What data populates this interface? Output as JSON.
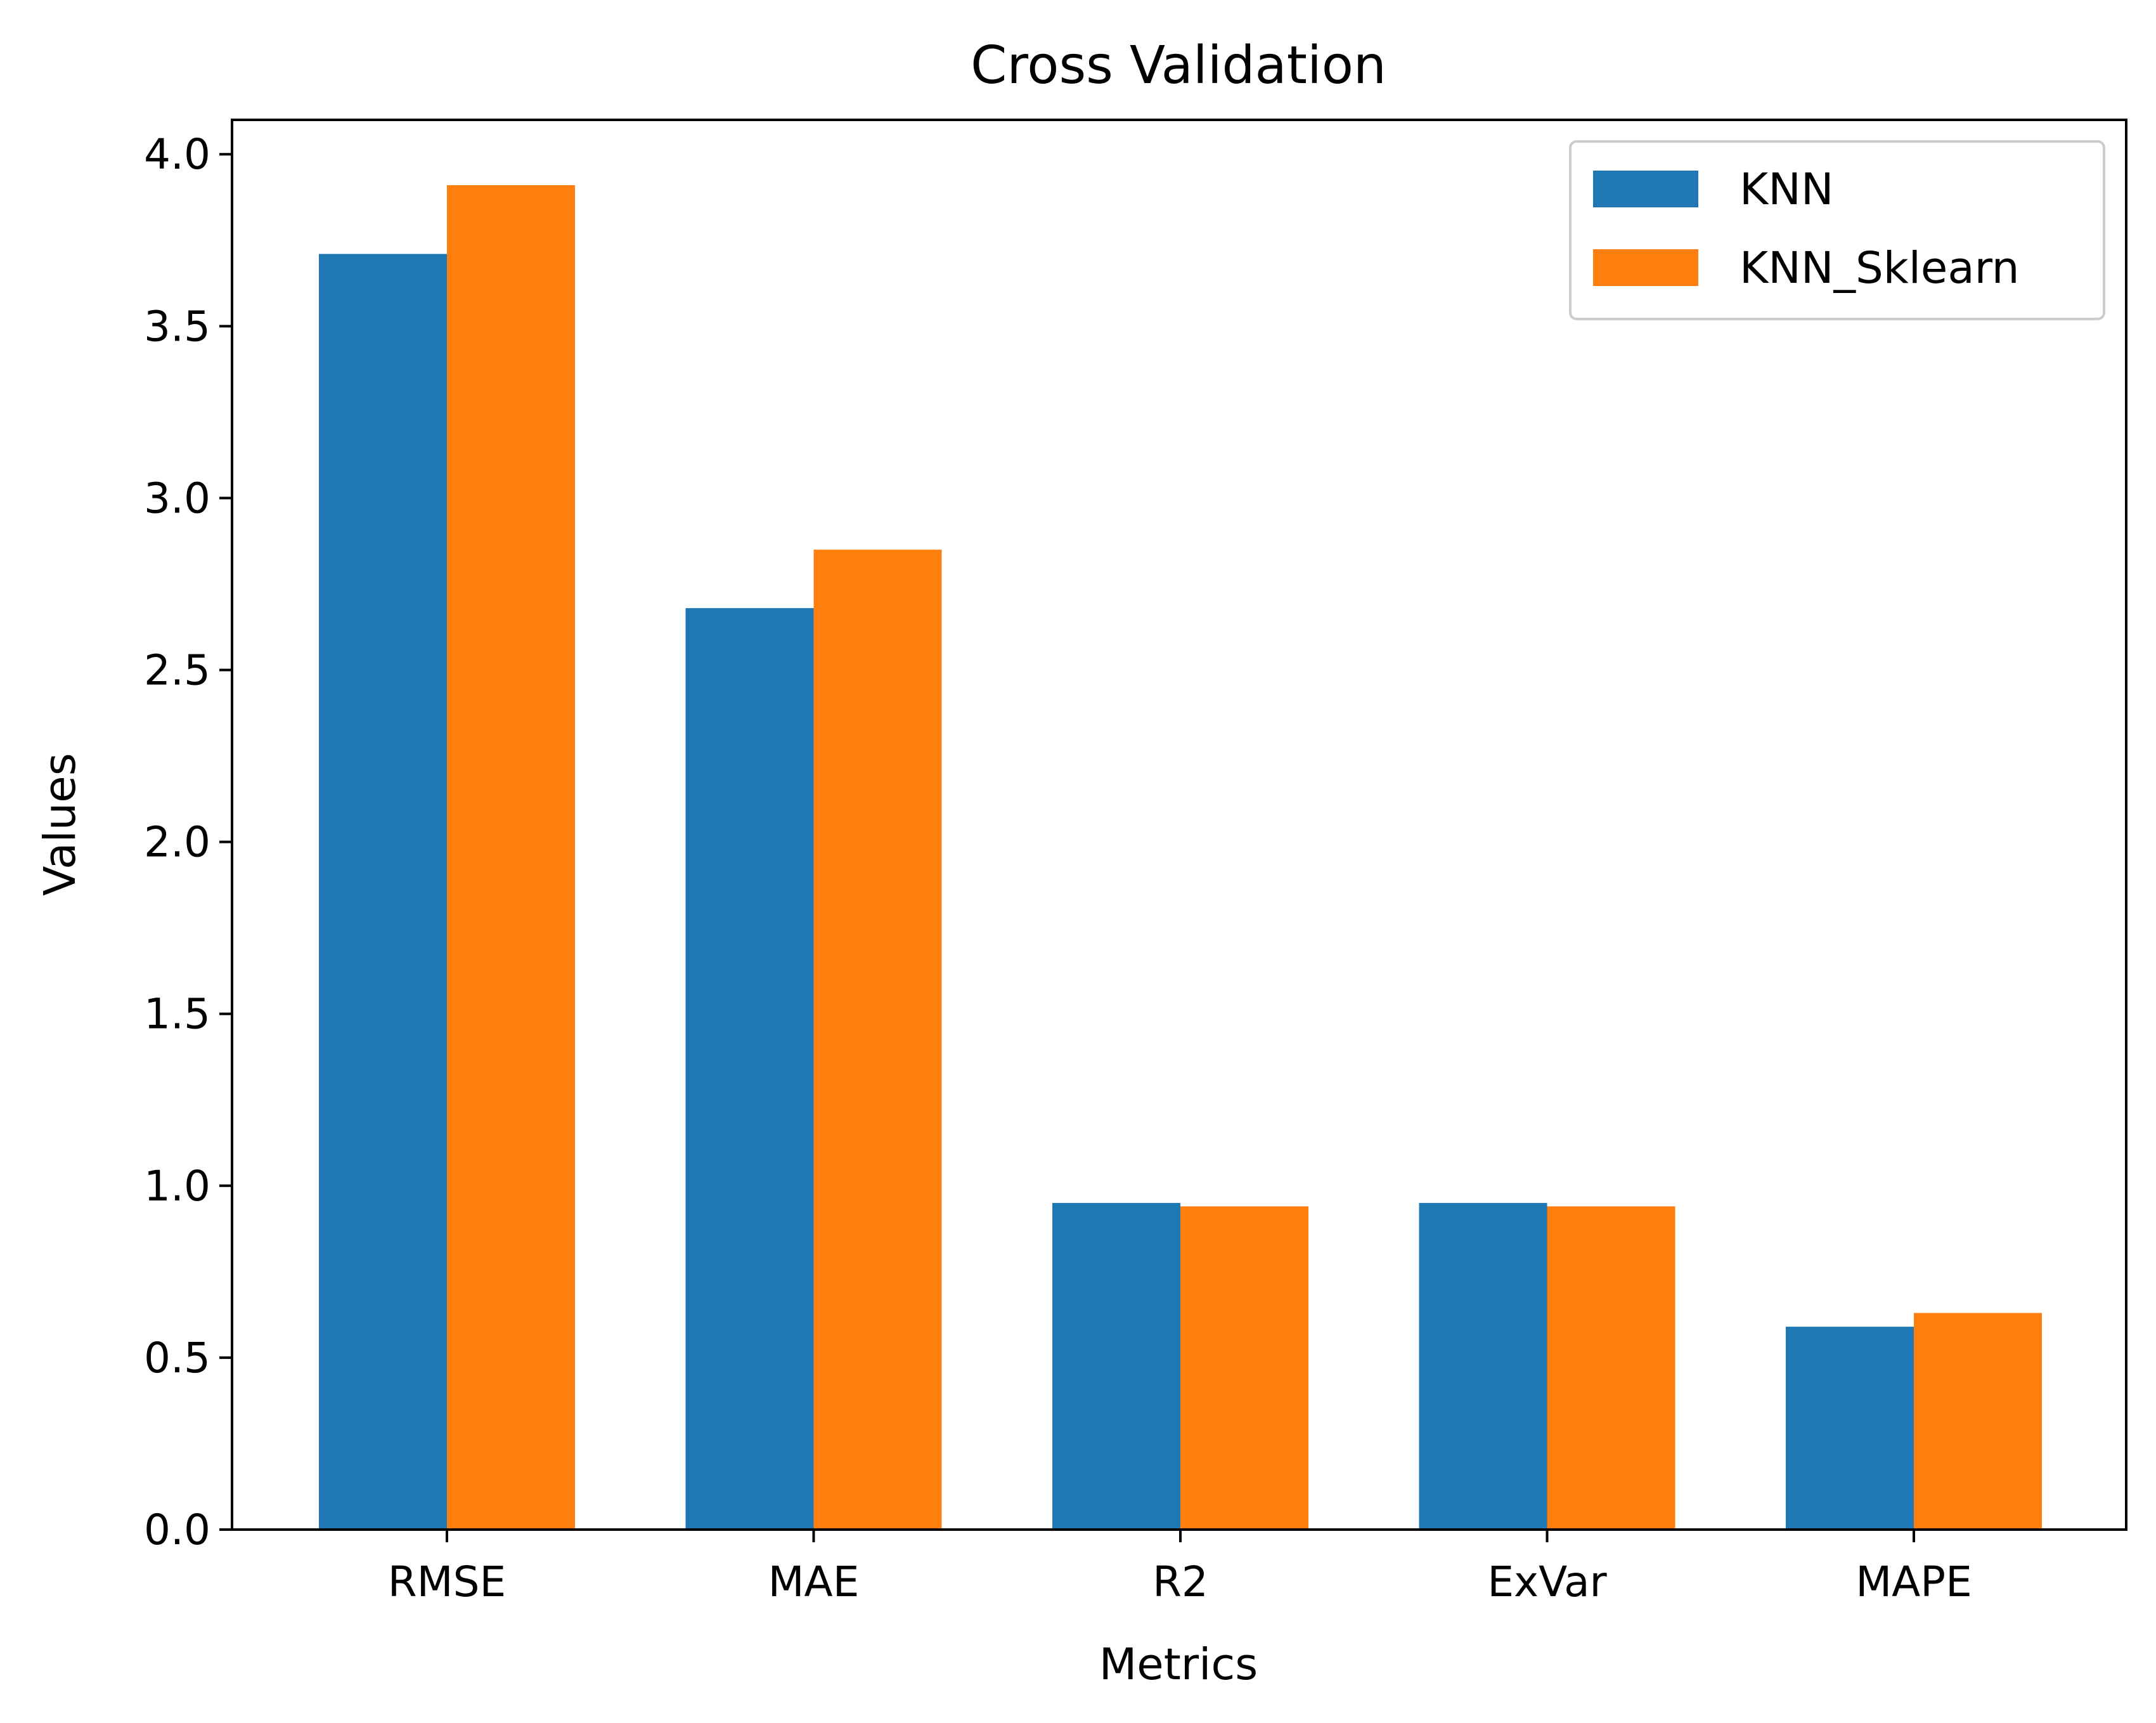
{
  "chart_data": {
    "type": "bar",
    "title": "Cross Validation",
    "xlabel": "Metrics",
    "ylabel": "Values",
    "categories": [
      "RMSE",
      "MAE",
      "R2",
      "ExVar",
      "MAPE"
    ],
    "series": [
      {
        "name": "KNN",
        "color": "#1f77b4",
        "values": [
          3.71,
          2.68,
          0.95,
          0.95,
          0.59
        ]
      },
      {
        "name": "KNN_Sklearn",
        "color": "#ff7f0e",
        "values": [
          3.91,
          2.85,
          0.94,
          0.94,
          0.63
        ]
      }
    ],
    "ylim": [
      0,
      4.1
    ],
    "yticks": [
      "0.0",
      "0.5",
      "1.0",
      "1.5",
      "2.0",
      "2.5",
      "3.0",
      "3.5",
      "4.0"
    ],
    "grid": false,
    "legend_position": "top-right"
  }
}
